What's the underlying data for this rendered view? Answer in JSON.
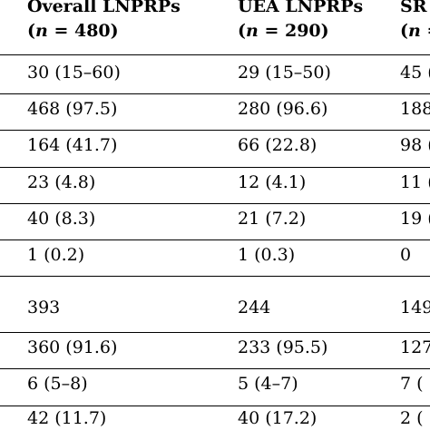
{
  "header": {
    "columns": [
      {
        "title": "Overall LNPRPs",
        "n_label": "n",
        "n_rest": " = 480)",
        "n_open": "("
      },
      {
        "title": "UEA LNPRPs",
        "n_label": "n",
        "n_rest": " = 290)",
        "n_open": "("
      },
      {
        "title": "SR",
        "n_label": "n",
        "n_rest": " =",
        "n_open": "("
      }
    ]
  },
  "rows": [
    [
      "30 (15–60)",
      "29 (15–50)",
      "45 ("
    ],
    [
      "468 (97.5)",
      "280 (96.6)",
      "188"
    ],
    [
      "164 (41.7)",
      "66 (22.8)",
      "98 ("
    ],
    [
      "23 (4.8)",
      "12 (4.1)",
      "11 ("
    ],
    [
      "40 (8.3)",
      "21 (7.2)",
      "19 ("
    ],
    [
      "1 (0.2)",
      "1 (0.3)",
      "0"
    ],
    [
      "393",
      "244",
      "149"
    ],
    [
      "360 (91.6)",
      "233 (95.5)",
      "127"
    ],
    [
      "6 (5–8)",
      "5 (4–7)",
      "7 ("
    ],
    [
      "42 (11.7)",
      "40 (17.2)",
      "2 ("
    ]
  ]
}
